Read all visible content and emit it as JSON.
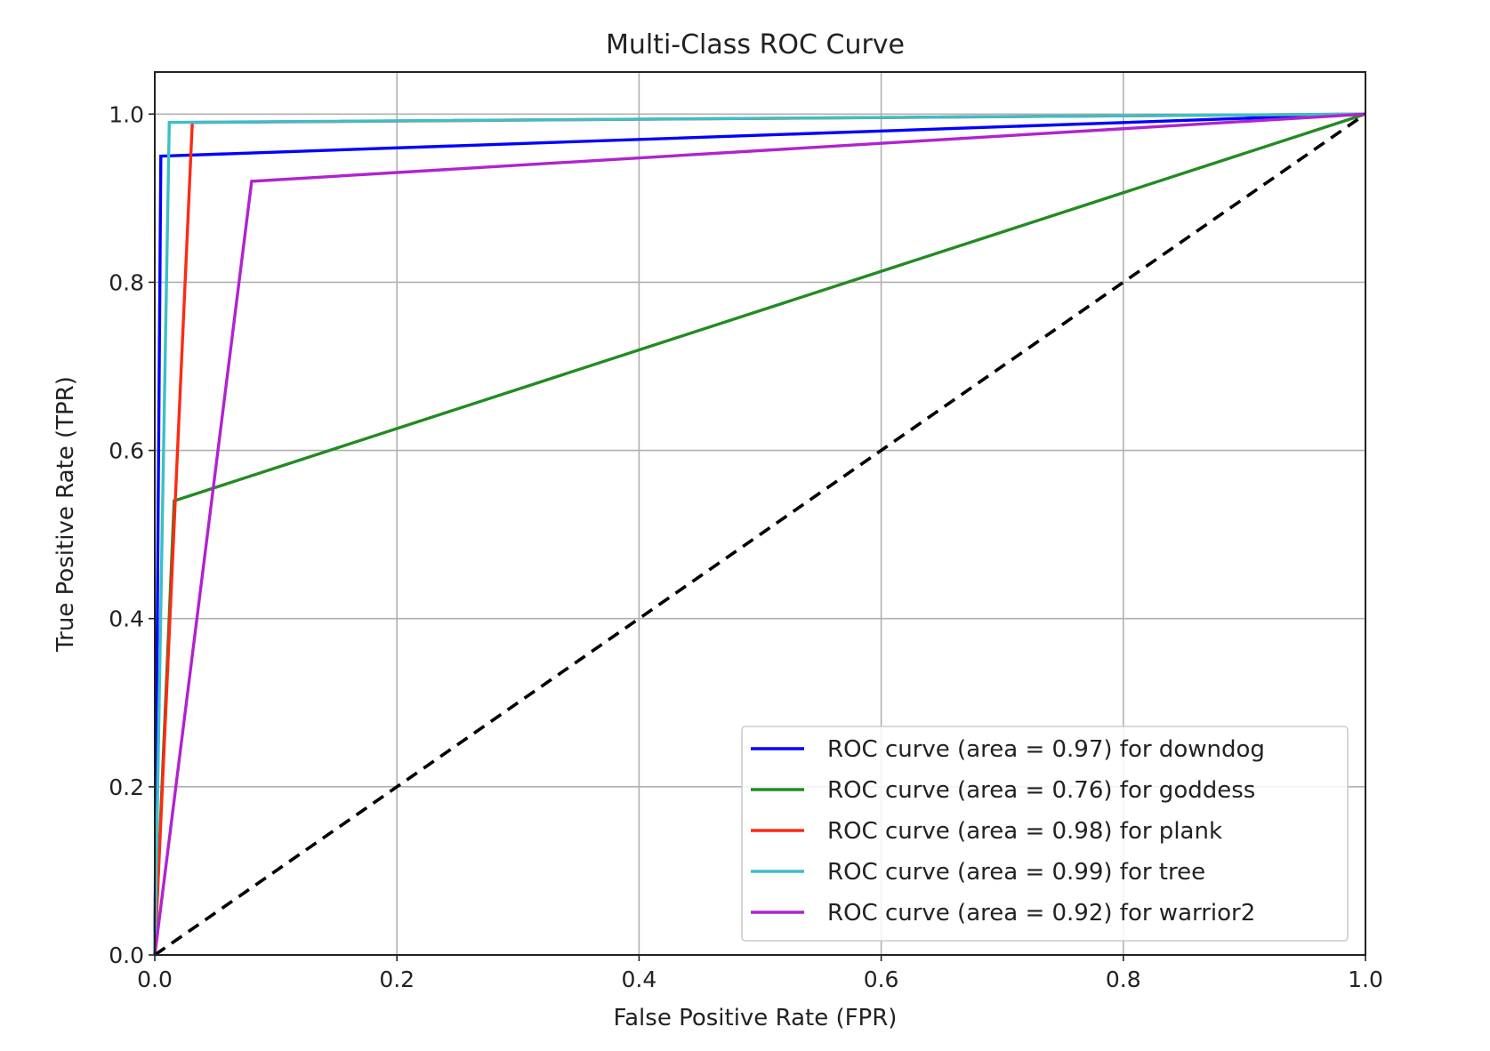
{
  "chart_data": {
    "type": "line",
    "title": "Multi-Class ROC Curve",
    "xlabel": "False Positive Rate (FPR)",
    "ylabel": "True Positive Rate (TPR)",
    "xlim": [
      0.0,
      1.0
    ],
    "ylim": [
      0.0,
      1.05
    ],
    "x_ticks": [
      "0.0",
      "0.2",
      "0.4",
      "0.6",
      "0.8",
      "1.0"
    ],
    "y_ticks": [
      "0.0",
      "0.2",
      "0.4",
      "0.6",
      "0.8",
      "1.0"
    ],
    "grid": true,
    "legend_position": "lower-right",
    "series": [
      {
        "name": "ROC curve (area = 0.97) for downdog",
        "color": "#0000ff",
        "x": [
          0.0,
          0.005,
          1.0
        ],
        "y": [
          0.0,
          0.95,
          1.0
        ]
      },
      {
        "name": "ROC curve (area = 0.76) for goddess",
        "color": "#228b22",
        "x": [
          0.0,
          0.016,
          1.0
        ],
        "y": [
          0.0,
          0.54,
          1.0
        ]
      },
      {
        "name": "ROC curve (area = 0.98) for plank",
        "color": "#ff2a12",
        "x": [
          0.0,
          0.031,
          1.0
        ],
        "y": [
          0.0,
          0.99,
          1.0
        ]
      },
      {
        "name": "ROC curve (area = 0.99) for tree",
        "color": "#3cbfc7",
        "x": [
          0.0,
          0.012,
          1.0
        ],
        "y": [
          0.0,
          0.99,
          1.0
        ]
      },
      {
        "name": "ROC curve (area = 0.92) for warrior2",
        "color": "#b023cf",
        "x": [
          0.0,
          0.08,
          1.0
        ],
        "y": [
          0.0,
          0.92,
          1.0
        ]
      }
    ],
    "reference_line": {
      "color": "#000000",
      "style": "dashed",
      "x": [
        0.0,
        1.0
      ],
      "y": [
        0.0,
        1.0
      ]
    }
  }
}
